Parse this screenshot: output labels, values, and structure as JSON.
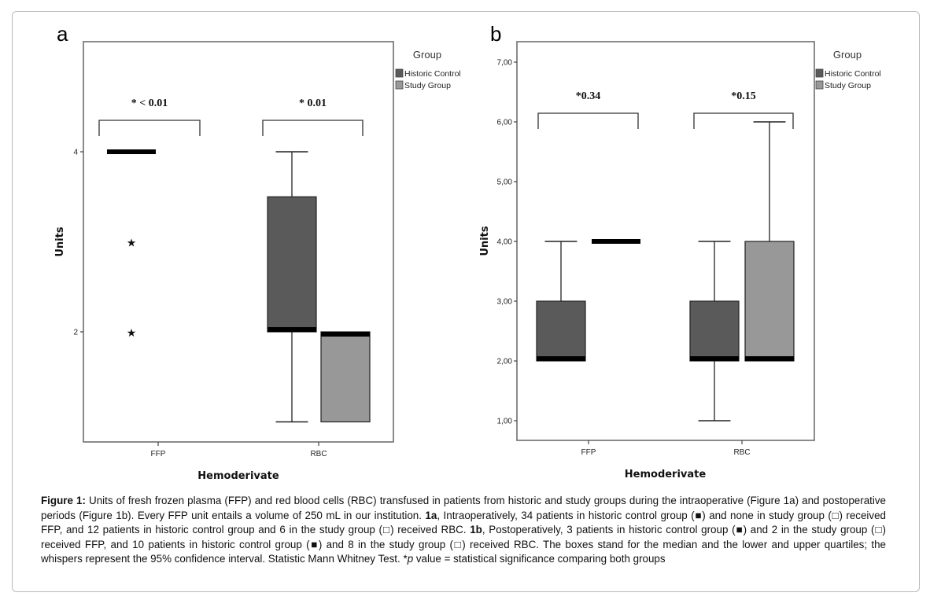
{
  "chart_data": [
    {
      "type": "boxplot",
      "panel": "a",
      "title": "a",
      "xlabel": "Hemoderivate",
      "ylabel": "Units",
      "ylim": [
        1,
        4
      ],
      "yticks": [
        2,
        4
      ],
      "ytick_labels": [
        "2",
        "4"
      ],
      "categories": [
        "FFP",
        "RBC"
      ],
      "legend": {
        "title": "Group",
        "position": "right",
        "entries": [
          "Historic Control",
          "Study Group"
        ]
      },
      "series": [
        {
          "name": "Historic Control",
          "color": "#5a5a5a",
          "boxes": [
            {
              "category": "FFP",
              "min": 4,
              "q1": 4,
              "median": 4,
              "q3": 4,
              "max": 4,
              "outliers": [
                3,
                2
              ]
            },
            {
              "category": "RBC",
              "min": 1,
              "q1": 2,
              "median": 2,
              "q3": 3.5,
              "max": 4,
              "outliers": []
            }
          ]
        },
        {
          "name": "Study Group",
          "color": "#989898",
          "boxes": [
            {
              "category": "FFP",
              "empty": true
            },
            {
              "category": "RBC",
              "min": 1,
              "q1": 1,
              "median": 2,
              "q3": 2,
              "max": 2,
              "outliers": []
            }
          ]
        }
      ],
      "annotations": [
        {
          "category": "FFP",
          "text": "* < 0.01"
        },
        {
          "category": "RBC",
          "text": "* 0.01"
        }
      ]
    },
    {
      "type": "boxplot",
      "panel": "b",
      "title": "b",
      "xlabel": "Hemoderivate",
      "ylabel": "Units",
      "ylim": [
        0.7,
        7.3
      ],
      "yticks": [
        1,
        2,
        3,
        4,
        5,
        6,
        7
      ],
      "ytick_labels": [
        "1,00",
        "2,00",
        "3,00",
        "4,00",
        "5,00",
        "6,00",
        "7,00"
      ],
      "categories": [
        "FFP",
        "RBC"
      ],
      "legend": {
        "title": "Group",
        "position": "right",
        "entries": [
          "Historic Control",
          "Study Group"
        ]
      },
      "series": [
        {
          "name": "Historic Control",
          "color": "#5a5a5a",
          "boxes": [
            {
              "category": "FFP",
              "min": 2,
              "q1": 2,
              "median": 2,
              "q3": 3,
              "max": 4,
              "outliers": []
            },
            {
              "category": "RBC",
              "min": 1,
              "q1": 2,
              "median": 2,
              "q3": 3,
              "max": 4,
              "outliers": []
            }
          ]
        },
        {
          "name": "Study Group",
          "color": "#989898",
          "boxes": [
            {
              "category": "FFP",
              "min": 4,
              "q1": 4,
              "median": 4,
              "q3": 4,
              "max": 4,
              "outliers": []
            },
            {
              "category": "RBC",
              "min": 2,
              "q1": 2,
              "median": 2,
              "q3": 4,
              "max": 6,
              "outliers": []
            }
          ]
        }
      ],
      "annotations": [
        {
          "category": "FFP",
          "text": "*0.34"
        },
        {
          "category": "RBC",
          "text": "*0.15"
        }
      ]
    }
  ],
  "caption": {
    "label": "Figure 1:",
    "segments": [
      {
        "bold": false,
        "text": " Units of fresh frozen plasma (FFP) and red blood cells (RBC) transfused in patients from historic and study groups during the intraoperative (Figure 1a) and postoperative periods (Figure 1b). Every FFP unit entails a volume of 250 mL in our institution. "
      },
      {
        "bold": true,
        "text": "1a"
      },
      {
        "bold": false,
        "text": ", Intraoperatively, 34 patients in historic control group (■) and none in study group (□) received FFP, and 12 patients in historic control group and 6 in the study group (□) received RBC. "
      },
      {
        "bold": true,
        "text": "1b"
      },
      {
        "bold": false,
        "text": ", Postoperatively, 3 patients in historic control group (■) and 2 in the study group (□) received FFP, and 10 patients in historic control group (■) and 8 in the study group (□) received RBC. The boxes stand for the median and the lower and upper quartiles; the whispers represent the 95% confidence interval. Statistic Mann Whitney Test. *"
      },
      {
        "italic": true,
        "text": "p"
      },
      {
        "bold": false,
        "text": " value = statistical significance comparing both groups"
      }
    ]
  }
}
